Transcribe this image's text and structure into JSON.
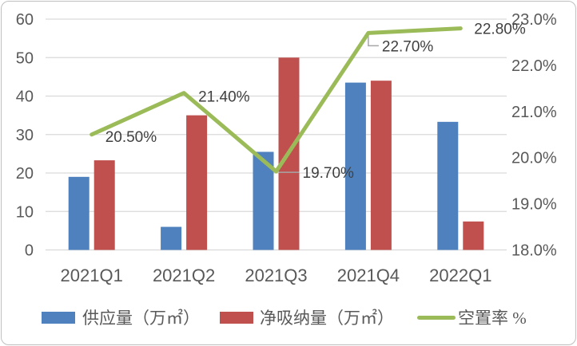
{
  "chart_data": {
    "type": "combo-bar-line",
    "title": "",
    "categories": [
      "2021Q1",
      "2021Q2",
      "2021Q3",
      "2021Q4",
      "2022Q1"
    ],
    "series": [
      {
        "name": "供应量（万㎡）",
        "type": "bar",
        "color": "#4E81BD",
        "axis": "left",
        "values": [
          19,
          6,
          25.5,
          43.5,
          33.3
        ]
      },
      {
        "name": "净吸纳量（万㎡）",
        "type": "bar",
        "color": "#C0504D",
        "axis": "left",
        "values": [
          23.3,
          35,
          50,
          44,
          7.4
        ]
      },
      {
        "name": "空置率 %",
        "type": "line",
        "color": "#9BBB59",
        "axis": "right",
        "values": [
          20.5,
          21.4,
          19.7,
          22.7,
          22.8
        ],
        "data_labels": [
          "20.50%",
          "21.40%",
          "19.70%",
          "22.70%",
          "22.80%"
        ],
        "label_offsets": [
          [
            17,
            2
          ],
          [
            18,
            4
          ],
          [
            33,
            1
          ],
          [
            17,
            16
          ],
          [
            17,
            0
          ]
        ],
        "leaders": {
          "2": [
            [
              3,
              1
            ],
            [
              29,
              1
            ]
          ],
          "3": [
            [
              0,
              4
            ],
            [
              0,
              16
            ],
            [
              13,
              16
            ]
          ]
        }
      }
    ],
    "left_axis": {
      "min": 0,
      "max": 60,
      "step": 10,
      "ticks": [
        "0",
        "10",
        "20",
        "30",
        "40",
        "50",
        "60"
      ]
    },
    "right_axis": {
      "min": 18,
      "max": 23,
      "step": 1,
      "ticks": [
        "18.0%",
        "19.0%",
        "20.0%",
        "21.0%",
        "22.0%",
        "23.0%"
      ]
    },
    "grid": true,
    "legend_position": "bottom",
    "colors": {
      "gridline": "#D9D9D9",
      "axis_text": "#595959",
      "data_label_text": "#404040",
      "leader_line": "#A6A6A6",
      "border": "#BFBFBF"
    }
  }
}
